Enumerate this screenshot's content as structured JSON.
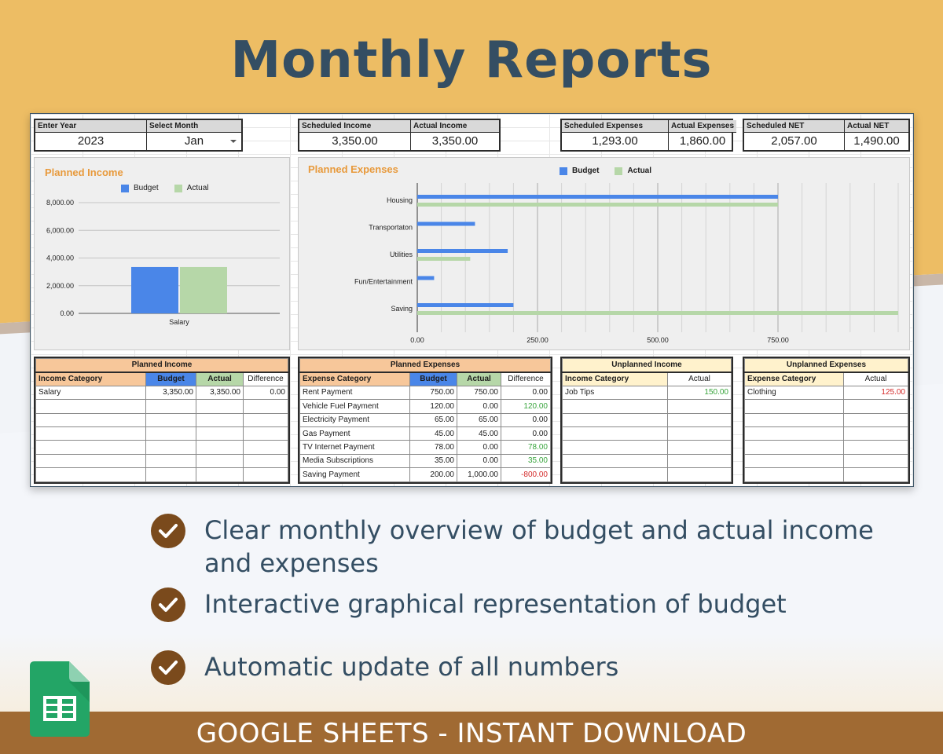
{
  "headline": "Monthly Reports",
  "kpis": {
    "enter_year": {
      "label": "Enter Year",
      "value": "2023"
    },
    "select_month": {
      "label": "Select Month",
      "value": "Jan"
    },
    "scheduled_income": {
      "label": "Scheduled Income",
      "value": "3,350.00"
    },
    "actual_income": {
      "label": "Actual Income",
      "value": "3,350.00"
    },
    "scheduled_expenses": {
      "label": "Scheduled Expenses",
      "value": "1,293.00"
    },
    "actual_expenses": {
      "label": "Actual Expenses",
      "value": "1,860.00"
    },
    "scheduled_net": {
      "label": "Scheduled NET",
      "value": "2,057.00"
    },
    "actual_net": {
      "label": "Actual NET",
      "value": "1,490.00"
    }
  },
  "colors": {
    "budget": "#4a86e8",
    "actual": "#b6d7a8",
    "title": "#e89a3c",
    "positive": "#38a43c",
    "negative": "#d42a2a"
  },
  "chart_data": [
    {
      "type": "bar",
      "title": "Planned Income",
      "categories": [
        "Salary"
      ],
      "series": [
        {
          "name": "Budget",
          "values": [
            3350
          ]
        },
        {
          "name": "Actual",
          "values": [
            3350
          ]
        }
      ],
      "y_ticks": [
        "8,000.00",
        "6,000.00",
        "4,000.00",
        "2,000.00",
        "0.00"
      ],
      "ylim": [
        0,
        8000
      ],
      "legend": "top"
    },
    {
      "type": "bar",
      "orientation": "horizontal",
      "title": "Planned Expenses",
      "categories": [
        "Housing",
        "Transportaton",
        "Utilities",
        "Fun/Entertainment",
        "Saving"
      ],
      "series": [
        {
          "name": "Budget",
          "values": [
            750,
            120,
            188,
            35,
            200
          ]
        },
        {
          "name": "Actual",
          "values": [
            750,
            0,
            110,
            0,
            1000
          ]
        }
      ],
      "x_ticks": [
        "0.00",
        "250.00",
        "500.00",
        "750.00"
      ],
      "xlim": [
        0,
        1000
      ],
      "legend": "top"
    }
  ],
  "tables": {
    "planned_income": {
      "caption": "Planned Income",
      "headers": [
        "Income Category",
        "Budget",
        "Actual",
        "Difference"
      ],
      "rows": [
        [
          "Salary",
          "3,350.00",
          "3,350.00",
          "0.00"
        ]
      ],
      "empty_rows": 6
    },
    "planned_expenses": {
      "caption": "Planned Expenses",
      "headers": [
        "Expense Category",
        "Budget",
        "Actual",
        "Difference"
      ],
      "rows": [
        [
          "Rent Payment",
          "750.00",
          "750.00",
          "0.00"
        ],
        [
          "Vehicle Fuel Payment",
          "120.00",
          "0.00",
          "120.00"
        ],
        [
          "Electricity Payment",
          "65.00",
          "65.00",
          "0.00"
        ],
        [
          "Gas Payment",
          "45.00",
          "45.00",
          "0.00"
        ],
        [
          "TV Internet Payment",
          "78.00",
          "0.00",
          "78.00"
        ],
        [
          "Media Subscriptions",
          "35.00",
          "0.00",
          "35.00"
        ],
        [
          "Saving Payment",
          "200.00",
          "1,000.00",
          "-800.00"
        ]
      ]
    },
    "unplanned_income": {
      "caption": "Unplanned Income",
      "headers": [
        "Income Category",
        "Actual"
      ],
      "rows": [
        [
          "Job Tips",
          "150.00"
        ]
      ],
      "empty_rows": 6
    },
    "unplanned_expenses": {
      "caption": "Unplanned Expenses",
      "headers": [
        "Expense Category",
        "Actual"
      ],
      "rows": [
        [
          "Clothing",
          "125.00"
        ]
      ],
      "empty_rows": 6
    }
  },
  "features": [
    "Clear monthly overview of budget and actual income and expenses",
    "Interactive graphical representation of budget",
    "Automatic update of all numbers"
  ],
  "footer": "GOOGLE SHEETS -  INSTANT DOWNLOAD",
  "icons": {
    "feature_bullet": "check-circle-icon",
    "logo": "google-sheets-icon",
    "dropdown": "chevron-down-icon"
  }
}
